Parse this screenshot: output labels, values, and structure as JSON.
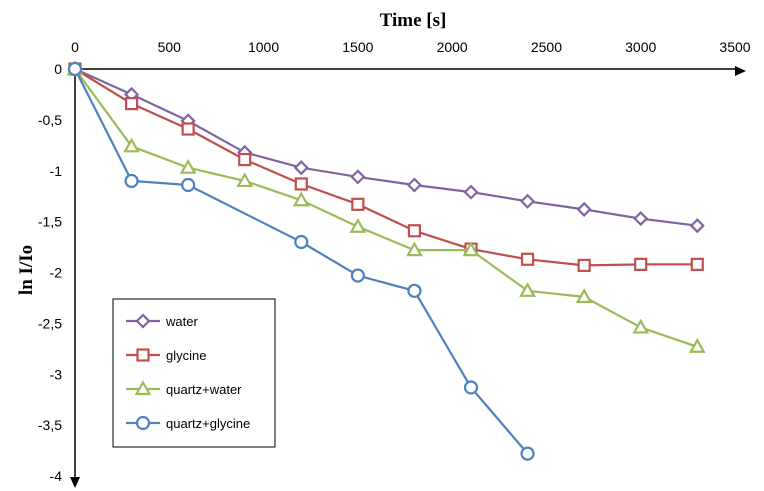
{
  "chart_data": {
    "type": "line",
    "xlabel": "Time [s]",
    "ylabel": "ln I/Io",
    "xlim": [
      0,
      3500
    ],
    "ylim": [
      -4,
      0
    ],
    "x_ticks": [
      0,
      500,
      1000,
      1500,
      2000,
      2500,
      3000,
      3500
    ],
    "x_tick_labels": [
      "0",
      "500",
      "1000",
      "1500",
      "2000",
      "2500",
      "3000",
      "3500"
    ],
    "y_ticks": [
      0,
      -0.5,
      -1,
      -1.5,
      -2,
      -2.5,
      -3,
      -3.5,
      -4
    ],
    "y_tick_labels": [
      "0",
      "-0,5",
      "-1",
      "-1,5",
      "-2",
      "-2,5",
      "-3",
      "-3,5",
      "-4"
    ],
    "x_axis_position": "top",
    "grid": false,
    "legend_position": "bottom-left",
    "series": [
      {
        "name": "water",
        "color": "#8064a2",
        "marker": "diamond",
        "x": [
          0,
          300,
          600,
          900,
          1200,
          1500,
          1800,
          2100,
          2400,
          2700,
          3000,
          3300
        ],
        "y": [
          0,
          -0.25,
          -0.51,
          -0.82,
          -0.97,
          -1.06,
          -1.14,
          -1.21,
          -1.3,
          -1.38,
          -1.47,
          -1.54
        ]
      },
      {
        "name": "glycine",
        "color": "#c0504d",
        "marker": "square",
        "x": [
          0,
          300,
          600,
          900,
          1200,
          1500,
          1800,
          2100,
          2400,
          2700,
          3000,
          3300
        ],
        "y": [
          0,
          -0.34,
          -0.59,
          -0.89,
          -1.13,
          -1.33,
          -1.59,
          -1.77,
          -1.87,
          -1.93,
          -1.92,
          -1.92
        ]
      },
      {
        "name": "quartz+water",
        "color": "#9bbb59",
        "marker": "triangle",
        "x": [
          0,
          300,
          600,
          900,
          1200,
          1500,
          1800,
          2100,
          2400,
          2700,
          3000,
          3300
        ],
        "y": [
          0,
          -0.76,
          -0.97,
          -1.1,
          -1.29,
          -1.55,
          -1.78,
          -1.78,
          -2.18,
          -2.24,
          -2.54,
          -2.73
        ]
      },
      {
        "name": "quartz+glycine",
        "color": "#4f81bd",
        "marker": "circle",
        "x": [
          0,
          300,
          600,
          1200,
          1500,
          1800,
          2100,
          2400
        ],
        "y": [
          0,
          -1.1,
          -1.14,
          -1.7,
          -2.03,
          -2.18,
          -3.13,
          -3.78
        ]
      }
    ]
  }
}
